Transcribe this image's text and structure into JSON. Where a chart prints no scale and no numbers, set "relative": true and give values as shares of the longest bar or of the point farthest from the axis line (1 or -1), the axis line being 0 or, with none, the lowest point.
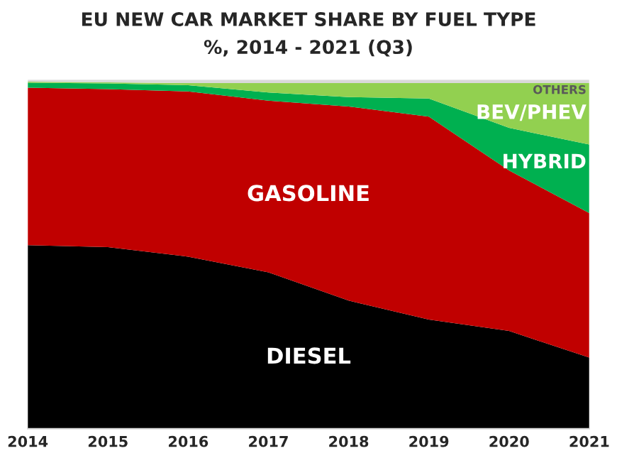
{
  "chart_data": {
    "type": "area",
    "stacked": true,
    "relative": true,
    "title": "EU NEW CAR MARKET SHARE BY FUEL TYPE",
    "subtitle": "%, 2014 - 2021 (Q3)",
    "x": [
      2014,
      2015,
      2016,
      2017,
      2018,
      2019,
      2020,
      2021
    ],
    "xlim": [
      2014,
      2021
    ],
    "xticks": [
      2014,
      2015,
      2016,
      2017,
      2018,
      2019,
      2020,
      2021
    ],
    "tick_labels": "x",
    "grid": false,
    "legend": false,
    "series": [
      {
        "name": "DIESEL",
        "color": "#000000",
        "values": [
          0.526,
          0.52,
          0.493,
          0.448,
          0.367,
          0.313,
          0.28,
          0.204
        ]
      },
      {
        "name": "GASOLINE",
        "color": "#c00000",
        "values": [
          0.451,
          0.453,
          0.473,
          0.492,
          0.556,
          0.581,
          0.46,
          0.414
        ]
      },
      {
        "name": "HYBRID",
        "color": "#00b050",
        "values": [
          0.014,
          0.016,
          0.018,
          0.023,
          0.027,
          0.052,
          0.122,
          0.196
        ]
      },
      {
        "name": "BEV/PHEV",
        "color": "#92d050",
        "values": [
          0.003,
          0.003,
          0.006,
          0.027,
          0.04,
          0.044,
          0.128,
          0.176
        ]
      },
      {
        "name": "OTHERS",
        "color": "#d9d9d9",
        "values": [
          0.006,
          0.008,
          0.01,
          0.01,
          0.01,
          0.01,
          0.01,
          0.01
        ]
      }
    ]
  }
}
